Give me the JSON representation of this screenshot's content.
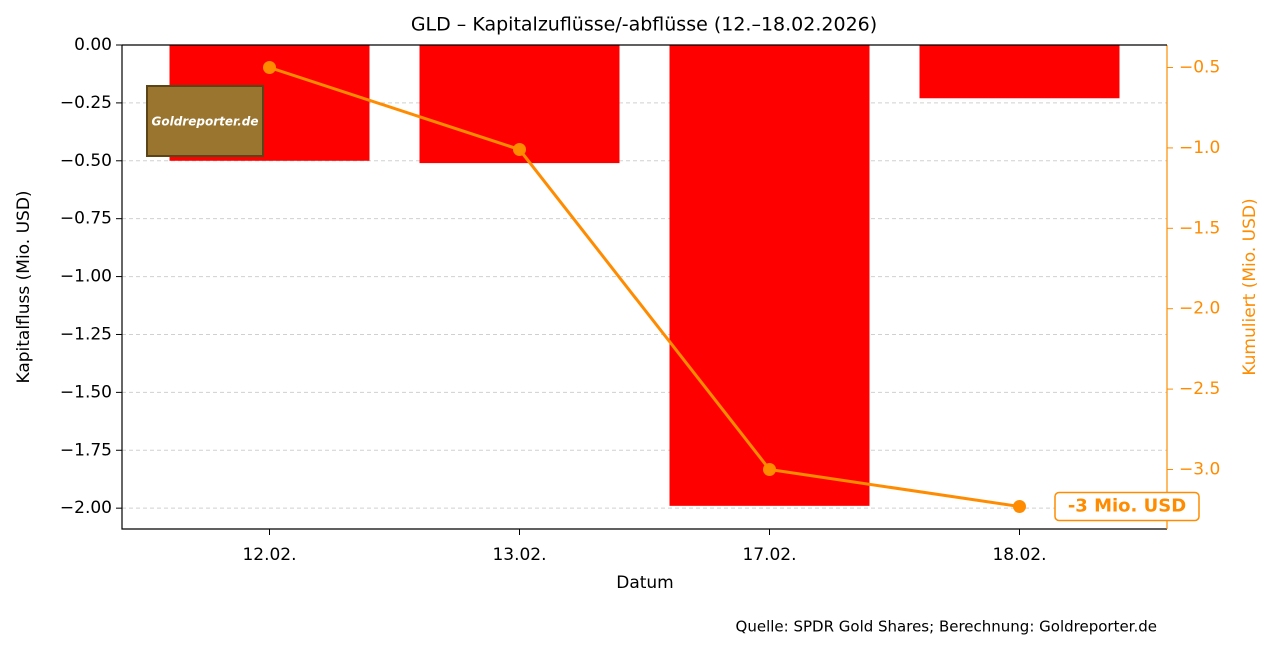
{
  "chart_data": {
    "type": "bar",
    "title": "GLD – Kapitalzuflüsse/-abflüsse (12.–18.02.2026)",
    "x_label": "Datum",
    "y_label": "Kapitalfluss (Mio. USD)",
    "y2_label": "Kumuliert (Mio. USD)",
    "categories": [
      "12.02.",
      "13.02.",
      "17.02.",
      "18.02."
    ],
    "series": [
      {
        "name": "Kapitalfluss",
        "type": "bar",
        "color": "#ff0000",
        "values": [
          -0.5,
          -0.51,
          -1.99,
          -0.23
        ]
      },
      {
        "name": "Kumuliert",
        "type": "line",
        "axis": "y2",
        "color": "#ff8c00",
        "values": [
          -0.5,
          -1.01,
          -3.0,
          -3.23
        ]
      }
    ],
    "ylim": [
      -2.09,
      0
    ],
    "yticks": [
      {
        "value": 0,
        "label": "0.00"
      },
      {
        "value": -0.25,
        "label": "−0.25"
      },
      {
        "value": -0.5,
        "label": "−0.50"
      },
      {
        "value": -0.75,
        "label": "−0.75"
      },
      {
        "value": -1,
        "label": "−1.00"
      },
      {
        "value": -1.25,
        "label": "−1.25"
      },
      {
        "value": -1.5,
        "label": "−1.50"
      },
      {
        "value": -1.75,
        "label": "−1.75"
      },
      {
        "value": -2,
        "label": "−2.00"
      }
    ],
    "y2lim": [
      -3.37,
      -0.36
    ],
    "y2ticks": [
      {
        "value": -0.5,
        "label": "−0.5"
      },
      {
        "value": -1,
        "label": "−1.0"
      },
      {
        "value": -1.5,
        "label": "−1.5"
      },
      {
        "value": -2,
        "label": "−2.0"
      },
      {
        "value": -2.5,
        "label": "−2.5"
      },
      {
        "value": -3,
        "label": "−3.0"
      }
    ],
    "grid": true,
    "annotation": "-3 Mio. USD",
    "source": "Quelle: SPDR Gold Shares; Berechnung: Goldreporter.de",
    "logo": "Goldreporter.de"
  }
}
